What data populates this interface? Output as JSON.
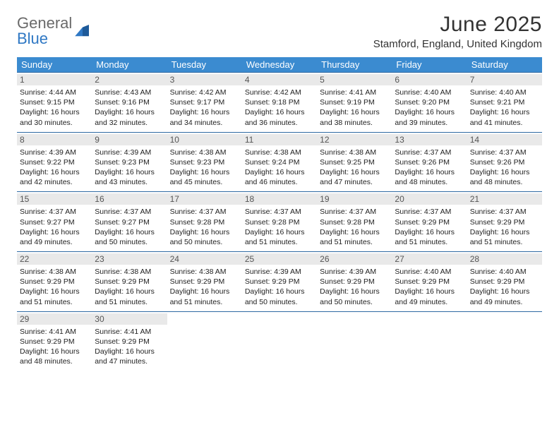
{
  "brand": {
    "part1": "General",
    "part2": "Blue"
  },
  "title": "June 2025",
  "location": "Stamford, England, United Kingdom",
  "colors": {
    "header_bg": "#3b8bd0",
    "header_text": "#ffffff",
    "day_num_bg": "#e9e9e9",
    "week_border": "#2f6aa3",
    "brand_gray": "#6a6a6a",
    "brand_blue": "#2f78c4"
  },
  "typography": {
    "title_fontsize": 30,
    "location_fontsize": 15,
    "dow_fontsize": 13,
    "daynum_fontsize": 12,
    "body_fontsize": 10.5
  },
  "days_of_week": [
    "Sunday",
    "Monday",
    "Tuesday",
    "Wednesday",
    "Thursday",
    "Friday",
    "Saturday"
  ],
  "weeks": [
    [
      {
        "n": "1",
        "sr": "Sunrise: 4:44 AM",
        "ss": "Sunset: 9:15 PM",
        "dl": "Daylight: 16 hours and 30 minutes."
      },
      {
        "n": "2",
        "sr": "Sunrise: 4:43 AM",
        "ss": "Sunset: 9:16 PM",
        "dl": "Daylight: 16 hours and 32 minutes."
      },
      {
        "n": "3",
        "sr": "Sunrise: 4:42 AM",
        "ss": "Sunset: 9:17 PM",
        "dl": "Daylight: 16 hours and 34 minutes."
      },
      {
        "n": "4",
        "sr": "Sunrise: 4:42 AM",
        "ss": "Sunset: 9:18 PM",
        "dl": "Daylight: 16 hours and 36 minutes."
      },
      {
        "n": "5",
        "sr": "Sunrise: 4:41 AM",
        "ss": "Sunset: 9:19 PM",
        "dl": "Daylight: 16 hours and 38 minutes."
      },
      {
        "n": "6",
        "sr": "Sunrise: 4:40 AM",
        "ss": "Sunset: 9:20 PM",
        "dl": "Daylight: 16 hours and 39 minutes."
      },
      {
        "n": "7",
        "sr": "Sunrise: 4:40 AM",
        "ss": "Sunset: 9:21 PM",
        "dl": "Daylight: 16 hours and 41 minutes."
      }
    ],
    [
      {
        "n": "8",
        "sr": "Sunrise: 4:39 AM",
        "ss": "Sunset: 9:22 PM",
        "dl": "Daylight: 16 hours and 42 minutes."
      },
      {
        "n": "9",
        "sr": "Sunrise: 4:39 AM",
        "ss": "Sunset: 9:23 PM",
        "dl": "Daylight: 16 hours and 43 minutes."
      },
      {
        "n": "10",
        "sr": "Sunrise: 4:38 AM",
        "ss": "Sunset: 9:23 PM",
        "dl": "Daylight: 16 hours and 45 minutes."
      },
      {
        "n": "11",
        "sr": "Sunrise: 4:38 AM",
        "ss": "Sunset: 9:24 PM",
        "dl": "Daylight: 16 hours and 46 minutes."
      },
      {
        "n": "12",
        "sr": "Sunrise: 4:38 AM",
        "ss": "Sunset: 9:25 PM",
        "dl": "Daylight: 16 hours and 47 minutes."
      },
      {
        "n": "13",
        "sr": "Sunrise: 4:37 AM",
        "ss": "Sunset: 9:26 PM",
        "dl": "Daylight: 16 hours and 48 minutes."
      },
      {
        "n": "14",
        "sr": "Sunrise: 4:37 AM",
        "ss": "Sunset: 9:26 PM",
        "dl": "Daylight: 16 hours and 48 minutes."
      }
    ],
    [
      {
        "n": "15",
        "sr": "Sunrise: 4:37 AM",
        "ss": "Sunset: 9:27 PM",
        "dl": "Daylight: 16 hours and 49 minutes."
      },
      {
        "n": "16",
        "sr": "Sunrise: 4:37 AM",
        "ss": "Sunset: 9:27 PM",
        "dl": "Daylight: 16 hours and 50 minutes."
      },
      {
        "n": "17",
        "sr": "Sunrise: 4:37 AM",
        "ss": "Sunset: 9:28 PM",
        "dl": "Daylight: 16 hours and 50 minutes."
      },
      {
        "n": "18",
        "sr": "Sunrise: 4:37 AM",
        "ss": "Sunset: 9:28 PM",
        "dl": "Daylight: 16 hours and 51 minutes."
      },
      {
        "n": "19",
        "sr": "Sunrise: 4:37 AM",
        "ss": "Sunset: 9:28 PM",
        "dl": "Daylight: 16 hours and 51 minutes."
      },
      {
        "n": "20",
        "sr": "Sunrise: 4:37 AM",
        "ss": "Sunset: 9:29 PM",
        "dl": "Daylight: 16 hours and 51 minutes."
      },
      {
        "n": "21",
        "sr": "Sunrise: 4:37 AM",
        "ss": "Sunset: 9:29 PM",
        "dl": "Daylight: 16 hours and 51 minutes."
      }
    ],
    [
      {
        "n": "22",
        "sr": "Sunrise: 4:38 AM",
        "ss": "Sunset: 9:29 PM",
        "dl": "Daylight: 16 hours and 51 minutes."
      },
      {
        "n": "23",
        "sr": "Sunrise: 4:38 AM",
        "ss": "Sunset: 9:29 PM",
        "dl": "Daylight: 16 hours and 51 minutes."
      },
      {
        "n": "24",
        "sr": "Sunrise: 4:38 AM",
        "ss": "Sunset: 9:29 PM",
        "dl": "Daylight: 16 hours and 51 minutes."
      },
      {
        "n": "25",
        "sr": "Sunrise: 4:39 AM",
        "ss": "Sunset: 9:29 PM",
        "dl": "Daylight: 16 hours and 50 minutes."
      },
      {
        "n": "26",
        "sr": "Sunrise: 4:39 AM",
        "ss": "Sunset: 9:29 PM",
        "dl": "Daylight: 16 hours and 50 minutes."
      },
      {
        "n": "27",
        "sr": "Sunrise: 4:40 AM",
        "ss": "Sunset: 9:29 PM",
        "dl": "Daylight: 16 hours and 49 minutes."
      },
      {
        "n": "28",
        "sr": "Sunrise: 4:40 AM",
        "ss": "Sunset: 9:29 PM",
        "dl": "Daylight: 16 hours and 49 minutes."
      }
    ],
    [
      {
        "n": "29",
        "sr": "Sunrise: 4:41 AM",
        "ss": "Sunset: 9:29 PM",
        "dl": "Daylight: 16 hours and 48 minutes."
      },
      {
        "n": "30",
        "sr": "Sunrise: 4:41 AM",
        "ss": "Sunset: 9:29 PM",
        "dl": "Daylight: 16 hours and 47 minutes."
      },
      {
        "empty": true
      },
      {
        "empty": true
      },
      {
        "empty": true
      },
      {
        "empty": true
      },
      {
        "empty": true
      }
    ]
  ]
}
